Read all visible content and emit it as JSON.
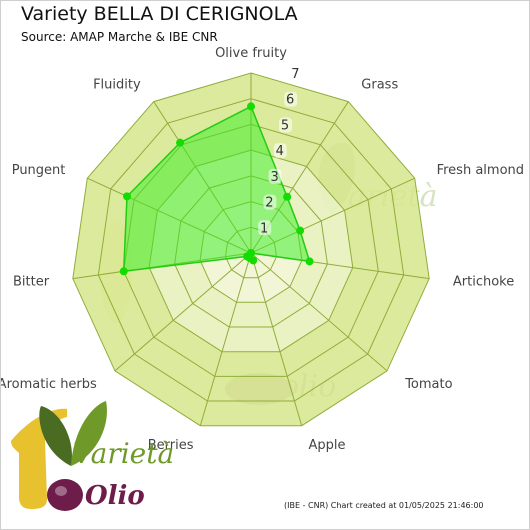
{
  "title": "Variety BELLA DI CERIGNOLA",
  "subtitle": "Source: AMAP Marche & IBE CNR",
  "footer": "(IBE - CNR) Chart created at 01/05/2025 21:46:00",
  "logo": {
    "line1": "Varietà",
    "line2": "Olio",
    "numeral": "1"
  },
  "watermark": {
    "text1": "varietà",
    "text2": "olio"
  },
  "colors": {
    "band_fill": "#d6e68c",
    "band_stroke": "#8fae3a",
    "inner_fill": "#f6f8e2",
    "series_fill": "#33ee22",
    "series_line": "#22cc11",
    "point": "#11dd00",
    "logo_yellow": "#e8c12e",
    "logo_purple": "#6e1d4a",
    "logo_green": "#6f9a2a"
  },
  "chart_data": {
    "type": "radar",
    "title": "Variety BELLA DI CERIGNOLA",
    "categories": [
      "Olive fruity",
      "Grass",
      "Fresh almond",
      "Artichoke",
      "Tomato",
      "Apple",
      "Berries",
      "Aromatic herbs",
      "Bitter",
      "Pungent",
      "Fluidity"
    ],
    "range": [
      0,
      7
    ],
    "ticks": [
      "1",
      "2",
      "3",
      "4",
      "5",
      "6",
      "7"
    ],
    "grid": true,
    "series": [
      {
        "values": [
          5.7,
          2.6,
          2.1,
          2.3,
          0,
          0.3,
          0.2,
          0.2,
          5.0,
          5.3,
          5.1
        ]
      }
    ]
  }
}
